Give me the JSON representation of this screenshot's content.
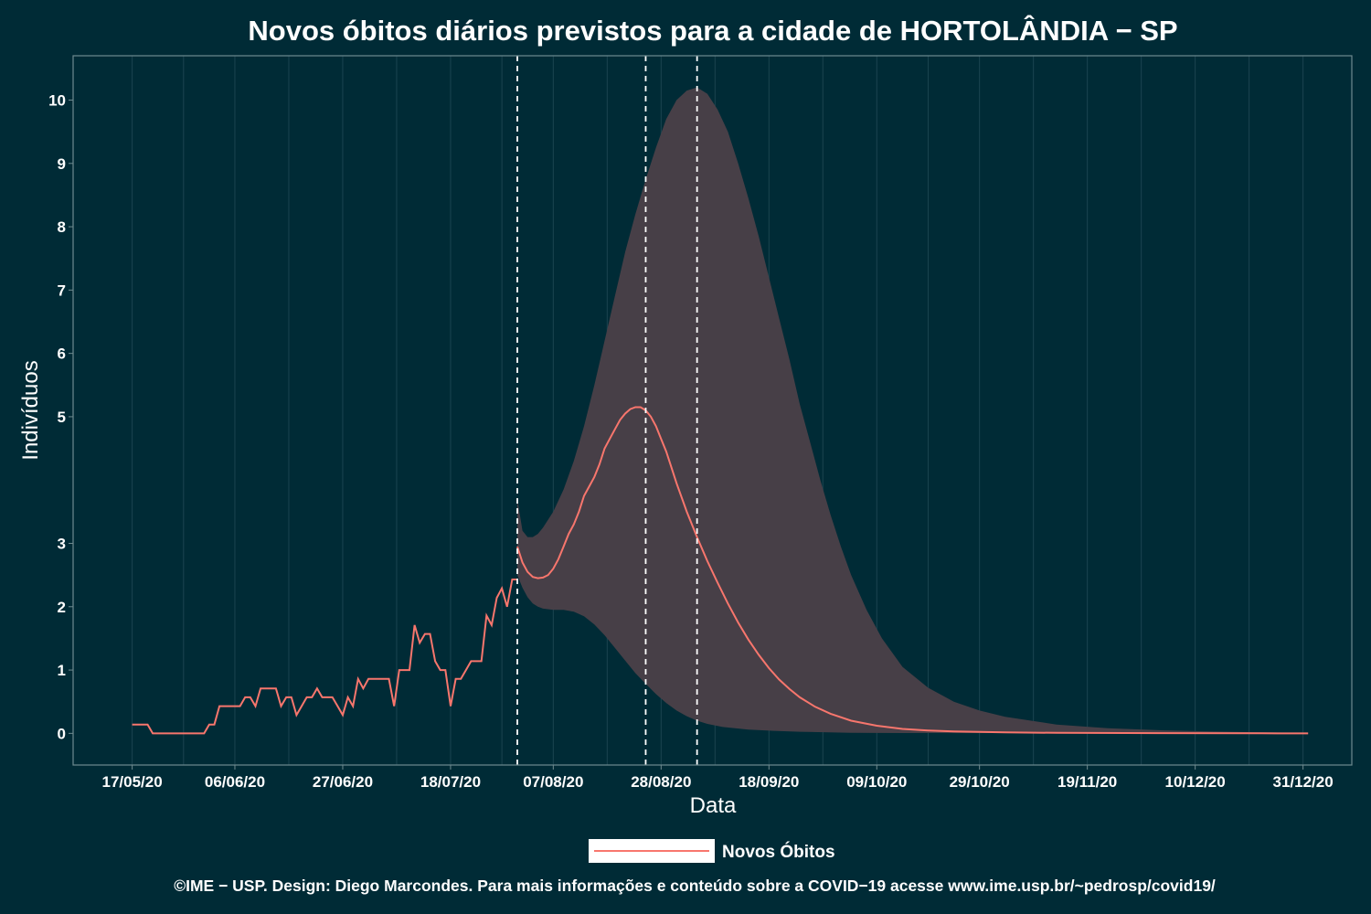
{
  "chart_data": {
    "type": "line",
    "title": "Novos óbitos diários previstos para a cidade de HORTOLÂNDIA − SP",
    "xlabel": "Data",
    "ylabel": "Indivíduos",
    "x_tick_labels": [
      "17/05/20",
      "06/06/20",
      "27/06/20",
      "18/07/20",
      "07/08/20",
      "28/08/20",
      "18/09/20",
      "09/10/20",
      "29/10/20",
      "19/11/20",
      "10/12/20",
      "31/12/20"
    ],
    "x_tick_days": [
      0,
      20,
      41,
      62,
      82,
      103,
      124,
      145,
      165,
      186,
      207,
      228
    ],
    "y_tick_labels": [
      "0",
      "1",
      "2",
      "3",
      "5",
      "6",
      "7",
      "8",
      "9",
      "10"
    ],
    "y_tick_values": [
      0,
      1,
      2,
      3,
      5,
      6,
      7,
      8,
      9,
      10
    ],
    "xlim": [
      -11.5,
      237.5
    ],
    "ylim": [
      -0.5,
      10.7
    ],
    "grid": "vertical",
    "vertical_dashed_lines_days": [
      75,
      100,
      110
    ],
    "series": [
      {
        "name": "Novos Óbitos",
        "color": "#f8766d",
        "observed": [
          [
            0,
            0.14
          ],
          [
            1,
            0.14
          ],
          [
            2,
            0.14
          ],
          [
            3,
            0.14
          ],
          [
            4,
            0
          ],
          [
            5,
            0
          ],
          [
            6,
            0
          ],
          [
            7,
            0
          ],
          [
            8,
            0
          ],
          [
            9,
            0
          ],
          [
            10,
            0
          ],
          [
            11,
            0
          ],
          [
            12,
            0
          ],
          [
            13,
            0
          ],
          [
            14,
            0
          ],
          [
            15,
            0.14
          ],
          [
            16,
            0.14
          ],
          [
            17,
            0.43
          ],
          [
            18,
            0.43
          ],
          [
            19,
            0.43
          ],
          [
            20,
            0.43
          ],
          [
            21,
            0.43
          ],
          [
            22,
            0.57
          ],
          [
            23,
            0.57
          ],
          [
            24,
            0.43
          ],
          [
            25,
            0.71
          ],
          [
            26,
            0.71
          ],
          [
            27,
            0.71
          ],
          [
            28,
            0.71
          ],
          [
            29,
            0.43
          ],
          [
            30,
            0.57
          ],
          [
            31,
            0.57
          ],
          [
            32,
            0.29
          ],
          [
            33,
            0.43
          ],
          [
            34,
            0.57
          ],
          [
            35,
            0.57
          ],
          [
            36,
            0.71
          ],
          [
            37,
            0.57
          ],
          [
            38,
            0.57
          ],
          [
            39,
            0.57
          ],
          [
            40,
            0.43
          ],
          [
            41,
            0.29
          ],
          [
            42,
            0.57
          ],
          [
            43,
            0.43
          ],
          [
            44,
            0.86
          ],
          [
            45,
            0.71
          ],
          [
            46,
            0.86
          ],
          [
            47,
            0.86
          ],
          [
            48,
            0.86
          ],
          [
            49,
            0.86
          ],
          [
            50,
            0.86
          ],
          [
            51,
            0.43
          ],
          [
            52,
            1.0
          ],
          [
            53,
            1.0
          ],
          [
            54,
            1.0
          ],
          [
            55,
            1.71
          ],
          [
            56,
            1.43
          ],
          [
            57,
            1.57
          ],
          [
            58,
            1.57
          ],
          [
            59,
            1.14
          ],
          [
            60,
            1.0
          ],
          [
            61,
            1.0
          ],
          [
            62,
            0.43
          ],
          [
            63,
            0.86
          ],
          [
            64,
            0.86
          ],
          [
            65,
            1.0
          ],
          [
            66,
            1.14
          ],
          [
            67,
            1.14
          ],
          [
            68,
            1.14
          ],
          [
            69,
            1.86
          ],
          [
            70,
            1.71
          ],
          [
            71,
            2.14
          ],
          [
            72,
            2.29
          ],
          [
            73,
            2.0
          ],
          [
            74,
            2.43
          ],
          [
            75,
            2.43
          ]
        ],
        "predicted": [
          [
            75,
            2.95
          ],
          [
            76,
            2.7
          ],
          [
            77,
            2.55
          ],
          [
            78,
            2.47
          ],
          [
            79,
            2.45
          ],
          [
            80,
            2.46
          ],
          [
            81,
            2.5
          ],
          [
            82,
            2.6
          ],
          [
            83,
            2.75
          ],
          [
            84,
            2.95
          ],
          [
            85,
            3.15
          ],
          [
            86,
            3.3
          ],
          [
            87,
            3.5
          ],
          [
            88,
            3.75
          ],
          [
            89,
            3.9
          ],
          [
            90,
            4.05
          ],
          [
            91,
            4.25
          ],
          [
            92,
            4.5
          ],
          [
            93,
            4.65
          ],
          [
            94,
            4.8
          ],
          [
            95,
            4.95
          ],
          [
            96,
            5.05
          ],
          [
            97,
            5.12
          ],
          [
            98,
            5.15
          ],
          [
            99,
            5.15
          ],
          [
            100,
            5.1
          ],
          [
            101,
            5.0
          ],
          [
            102,
            4.85
          ],
          [
            103,
            4.65
          ],
          [
            104,
            4.45
          ],
          [
            105,
            4.2
          ],
          [
            106,
            3.95
          ],
          [
            108,
            3.5
          ],
          [
            110,
            3.1
          ],
          [
            112,
            2.72
          ],
          [
            114,
            2.38
          ],
          [
            116,
            2.05
          ],
          [
            118,
            1.75
          ],
          [
            120,
            1.48
          ],
          [
            122,
            1.24
          ],
          [
            124,
            1.03
          ],
          [
            126,
            0.85
          ],
          [
            128,
            0.7
          ],
          [
            130,
            0.57
          ],
          [
            133,
            0.42
          ],
          [
            136,
            0.31
          ],
          [
            140,
            0.2
          ],
          [
            145,
            0.12
          ],
          [
            150,
            0.07
          ],
          [
            155,
            0.045
          ],
          [
            160,
            0.03
          ],
          [
            170,
            0.015
          ],
          [
            180,
            0.008
          ],
          [
            200,
            0.003
          ],
          [
            220,
            0.001
          ],
          [
            229,
            0
          ]
        ]
      }
    ],
    "confidence_band": {
      "upper": [
        [
          75,
          3.7
        ],
        [
          76,
          3.2
        ],
        [
          77,
          3.1
        ],
        [
          78,
          3.1
        ],
        [
          79,
          3.15
        ],
        [
          80,
          3.25
        ],
        [
          82,
          3.5
        ],
        [
          84,
          3.85
        ],
        [
          86,
          4.3
        ],
        [
          88,
          4.85
        ],
        [
          90,
          5.5
        ],
        [
          92,
          6.2
        ],
        [
          94,
          6.9
        ],
        [
          96,
          7.6
        ],
        [
          98,
          8.2
        ],
        [
          100,
          8.75
        ],
        [
          102,
          9.25
        ],
        [
          104,
          9.7
        ],
        [
          106,
          10.0
        ],
        [
          108,
          10.15
        ],
        [
          110,
          10.2
        ],
        [
          112,
          10.1
        ],
        [
          114,
          9.85
        ],
        [
          116,
          9.5
        ],
        [
          118,
          9.0
        ],
        [
          120,
          8.45
        ],
        [
          122,
          7.85
        ],
        [
          124,
          7.2
        ],
        [
          126,
          6.55
        ],
        [
          128,
          5.9
        ],
        [
          130,
          5.2
        ],
        [
          132,
          4.6
        ],
        [
          134,
          4.0
        ],
        [
          136,
          3.45
        ],
        [
          138,
          2.95
        ],
        [
          140,
          2.5
        ],
        [
          143,
          1.95
        ],
        [
          146,
          1.5
        ],
        [
          150,
          1.05
        ],
        [
          155,
          0.72
        ],
        [
          160,
          0.5
        ],
        [
          165,
          0.36
        ],
        [
          170,
          0.26
        ],
        [
          180,
          0.14
        ],
        [
          190,
          0.08
        ],
        [
          200,
          0.05
        ],
        [
          210,
          0.03
        ],
        [
          220,
          0.015
        ],
        [
          229,
          0.01
        ]
      ],
      "lower": [
        [
          75,
          2.5
        ],
        [
          76,
          2.3
        ],
        [
          77,
          2.15
        ],
        [
          78,
          2.05
        ],
        [
          79,
          2.0
        ],
        [
          80,
          1.97
        ],
        [
          82,
          1.95
        ],
        [
          84,
          1.95
        ],
        [
          86,
          1.92
        ],
        [
          88,
          1.85
        ],
        [
          90,
          1.72
        ],
        [
          92,
          1.55
        ],
        [
          94,
          1.35
        ],
        [
          96,
          1.15
        ],
        [
          98,
          0.95
        ],
        [
          100,
          0.78
        ],
        [
          102,
          0.62
        ],
        [
          104,
          0.48
        ],
        [
          106,
          0.36
        ],
        [
          108,
          0.27
        ],
        [
          110,
          0.2
        ],
        [
          112,
          0.15
        ],
        [
          115,
          0.1
        ],
        [
          120,
          0.06
        ],
        [
          125,
          0.04
        ],
        [
          130,
          0.025
        ],
        [
          140,
          0.01
        ],
        [
          150,
          0.005
        ],
        [
          229,
          0
        ]
      ]
    },
    "legend": "bottom",
    "caption": "©IME − USP. Design: Diego Marcondes. Para mais informações e conteúdo sobre a COVID−19 acesse www.ime.usp.br/~pedrosp/covid19/",
    "colors": {
      "background": "#002b36",
      "band": "#473f47",
      "line": "#f8766d",
      "grid": "#1b4450",
      "panel_border": "#6f8a8f",
      "text": "#ffffff",
      "vline": "#ffffff",
      "legend_key_fill": "#ffffff"
    }
  }
}
